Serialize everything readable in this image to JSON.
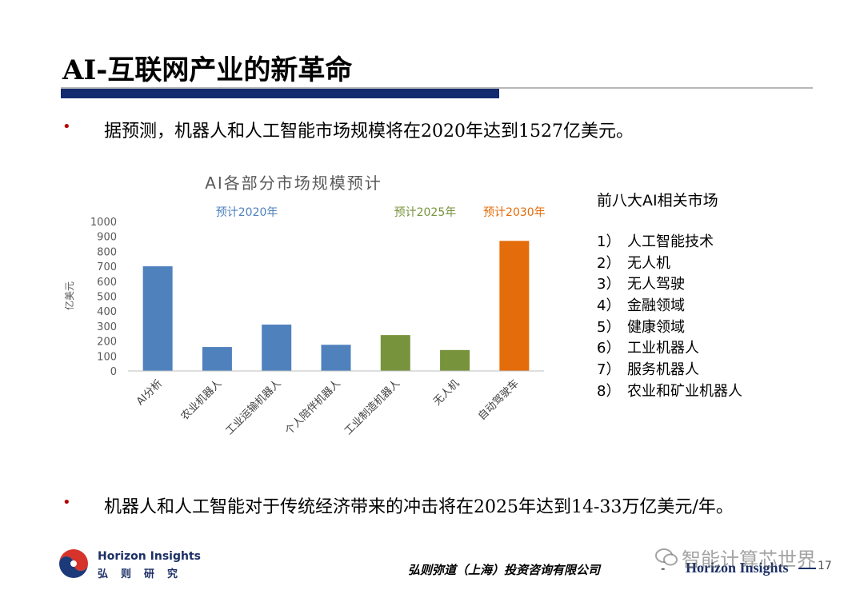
{
  "slide": {
    "title": "AI-互联网产业的新革命",
    "bullet1": "据预测，机器人和人工智能市场规模将在2020年达到1527亿美元。",
    "bullet2": "机器人和人工智能对于传统经济带来的冲击将在2025年达到14-33万亿美元/年。",
    "bullet_symbol": "•"
  },
  "chart_data": {
    "type": "bar",
    "title": "AI各部分市场规模预计",
    "ylabel": "亿美元",
    "ylim": [
      0,
      1000
    ],
    "yticks": [
      0,
      100,
      200,
      300,
      400,
      500,
      600,
      700,
      800,
      900,
      1000
    ],
    "categories": [
      "AI分析",
      "农业机器人",
      "工业运输机器人",
      "个人陪伴机器人",
      "工业制造机器人",
      "无人机",
      "自动驾驶车"
    ],
    "values": [
      700,
      160,
      310,
      175,
      240,
      140,
      870
    ],
    "groups": [
      {
        "label": "预计2020年",
        "color": "#4f81bd",
        "categories": [
          "AI分析",
          "农业机器人",
          "工业运输机器人",
          "个人陪伴机器人"
        ]
      },
      {
        "label": "预计2025年",
        "color": "#77933c",
        "categories": [
          "工业制造机器人",
          "无人机"
        ]
      },
      {
        "label": "预计2030年",
        "color": "#e46c0a",
        "categories": [
          "自动驾驶车"
        ]
      }
    ],
    "bar_colors": [
      "#4f81bd",
      "#4f81bd",
      "#4f81bd",
      "#4f81bd",
      "#77933c",
      "#77933c",
      "#e46c0a"
    ]
  },
  "side": {
    "title": "前八大AI相关市场",
    "items": [
      {
        "num": "1）",
        "label": "人工智能技术"
      },
      {
        "num": "2）",
        "label": "无人机"
      },
      {
        "num": "3）",
        "label": "无人驾驶"
      },
      {
        "num": "4）",
        "label": "金融领域"
      },
      {
        "num": "5）",
        "label": "健康领域"
      },
      {
        "num": "6）",
        "label": "工业机器人"
      },
      {
        "num": "7）",
        "label": "服务机器人"
      },
      {
        "num": "8）",
        "label": "农业和矿业机器人"
      }
    ]
  },
  "footer": {
    "brand_en": "Horizon Insights",
    "brand_cn": "弘则研究",
    "company": "弘则弥道（上海）投资咨询有限公司",
    "separator": "-",
    "brand_en_right": "Horizon Insights",
    "page": "17",
    "watermark": "智能计算芯世界",
    "logo_icon": "horizon-logo-icon",
    "watermark_icon": "wechat-icon"
  },
  "colors": {
    "title_bar": "#132a6e",
    "bullet_dot": "#b30000",
    "brand": "#1c2f66"
  }
}
